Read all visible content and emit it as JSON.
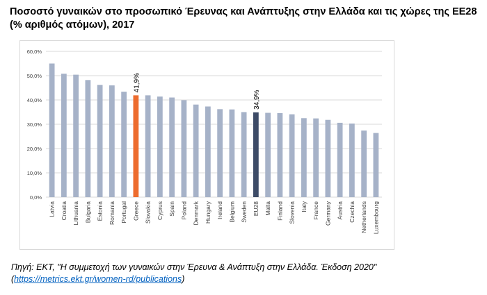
{
  "title": "Ποσοστό γυναικών στο προσωπικό Έρευνας και Ανάπτυξης στην Ελλάδα και τις χώρες της ΕΕ28 (% αριθμός ατόμων), 2017",
  "source": {
    "prefix": "Πηγή: ΕΚΤ, \"Η συμμετοχή των γυναικών στην Έρευνα & Ανάπτυξη στην Ελλάδα. Έκδοση 2020\"",
    "open_paren": "(",
    "link": "https://metrics.ekt.gr/women-rd/publications",
    "close_paren": ")"
  },
  "chart_data": {
    "type": "bar",
    "categories": [
      "Latvia",
      "Croatia",
      "Lithuania",
      "Bulgaria",
      "Estonia",
      "Romania",
      "Portugal",
      "Greece",
      "Slovakia",
      "Cyprus",
      "Spain",
      "Poland",
      "Denmark",
      "Hungary",
      "Ireland",
      "Belgium",
      "Sweden",
      "EU28",
      "Malta",
      "Finland",
      "Slovenia",
      "Italy",
      "France",
      "Germany",
      "Austria",
      "Czechia",
      "Netherlands",
      "Luxembourg"
    ],
    "values": [
      55.0,
      50.8,
      50.4,
      48.2,
      46.2,
      46.0,
      43.4,
      41.9,
      41.9,
      41.4,
      41.0,
      39.9,
      38.1,
      37.3,
      36.2,
      36.1,
      35.0,
      34.9,
      34.7,
      34.6,
      34.1,
      32.5,
      32.4,
      31.8,
      30.6,
      30.3,
      27.4,
      26.4
    ],
    "ylim": [
      0,
      60
    ],
    "yticks": [
      0,
      10,
      20,
      30,
      40,
      50,
      60
    ],
    "ytick_labels": [
      "0,0%",
      "10,0%",
      "20,0%",
      "30,0%",
      "40,0%",
      "50,0%",
      "60,0%"
    ],
    "data_labels": [
      {
        "category": "Greece",
        "text": "41,9%"
      },
      {
        "category": "EU28",
        "text": "34,9%"
      }
    ],
    "grid": true,
    "colors": {
      "default": "#a6b2c8",
      "Greece": "#ed6c2e",
      "EU28": "#3d4b67",
      "grid": "#d9d9d9",
      "axis_text": "#404040"
    }
  }
}
